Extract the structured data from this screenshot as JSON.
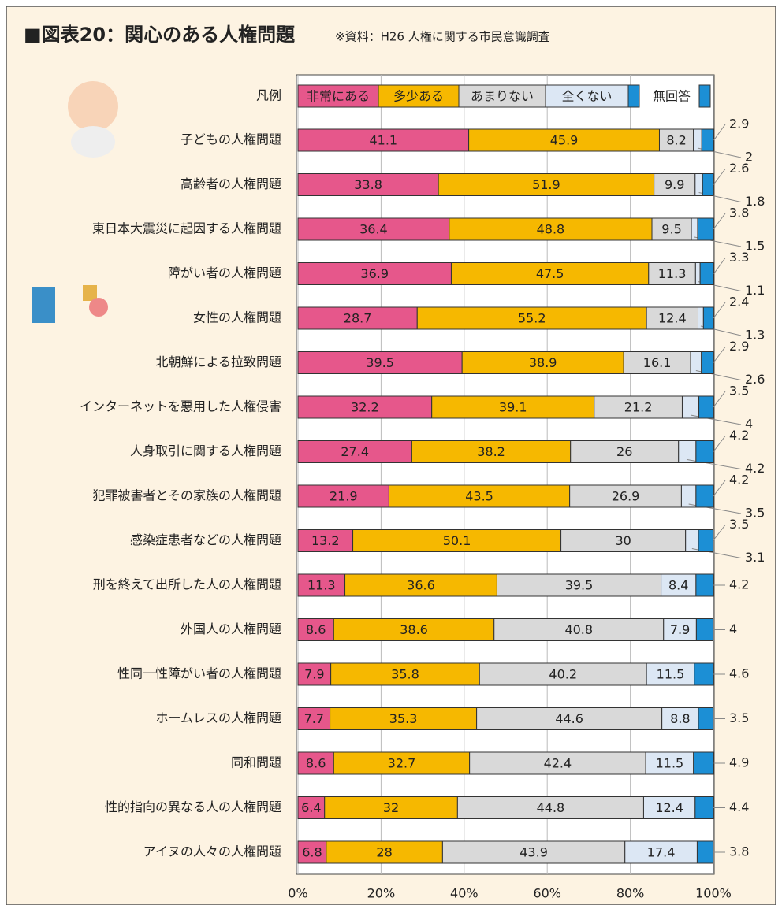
{
  "chart_data": {
    "type": "stacked-bar-horizontal",
    "title": "■図表20：関心のある人権問題",
    "subtitle": "※資料：H26 人権に関する市民意識調査",
    "legend_title": "凡例",
    "categories": [
      "子どもの人権問題",
      "高齢者の人権問題",
      "東日本大震災に起因する人権問題",
      "障がい者の人権問題",
      "女性の人権問題",
      "北朝鮮による拉致問題",
      "インターネットを悪用した人権侵害",
      "人身取引に関する人権問題",
      "犯罪被害者とその家族の人権問題",
      "感染症患者などの人権問題",
      "刑を終えて出所した人の人権問題",
      "外国人の人権問題",
      "性同一性障がい者の人権問題",
      "ホームレスの人権問題",
      "同和問題",
      "性的指向の異なる人の人権問題",
      "アイヌの人々の人権問題"
    ],
    "series": [
      {
        "name": "非常にある",
        "color": "#e6578b",
        "values": [
          41.1,
          33.8,
          36.4,
          36.9,
          28.7,
          39.5,
          32.2,
          27.4,
          21.9,
          13.2,
          11.3,
          8.6,
          7.9,
          7.7,
          8.6,
          6.4,
          6.8
        ]
      },
      {
        "name": "多少ある",
        "color": "#f6b800",
        "values": [
          45.9,
          51.9,
          48.8,
          47.5,
          55.2,
          38.9,
          39.1,
          38.2,
          43.5,
          50.1,
          36.6,
          38.6,
          35.8,
          35.3,
          32.7,
          32.0,
          28.0
        ]
      },
      {
        "name": "あまりない",
        "color": "#d9d9d9",
        "values": [
          8.2,
          9.9,
          9.5,
          11.3,
          12.4,
          16.1,
          21.2,
          26.0,
          26.9,
          30.0,
          39.5,
          40.8,
          40.2,
          44.6,
          42.4,
          44.8,
          43.9
        ]
      },
      {
        "name": "全くない",
        "color": "#dce7f4",
        "values": [
          2.0,
          1.8,
          1.5,
          1.1,
          1.3,
          2.6,
          4.0,
          4.2,
          3.5,
          3.1,
          8.4,
          7.9,
          11.5,
          8.8,
          11.5,
          12.4,
          17.4
        ]
      },
      {
        "name": "無回答",
        "color": "#1c8fd5",
        "values": [
          2.9,
          2.6,
          3.8,
          3.3,
          2.4,
          2.9,
          3.5,
          4.2,
          4.2,
          3.5,
          4.2,
          4.0,
          4.6,
          3.5,
          4.9,
          4.4,
          3.8
        ]
      }
    ],
    "xlim": [
      0,
      100
    ],
    "xticks": [
      {
        "value": 0,
        "label": "0%"
      },
      {
        "value": 20,
        "label": "20%"
      },
      {
        "value": 40,
        "label": "40%"
      },
      {
        "value": 60,
        "label": "60%"
      },
      {
        "value": 80,
        "label": "80%"
      },
      {
        "value": 100,
        "label": "100%"
      }
    ],
    "grid": true
  }
}
